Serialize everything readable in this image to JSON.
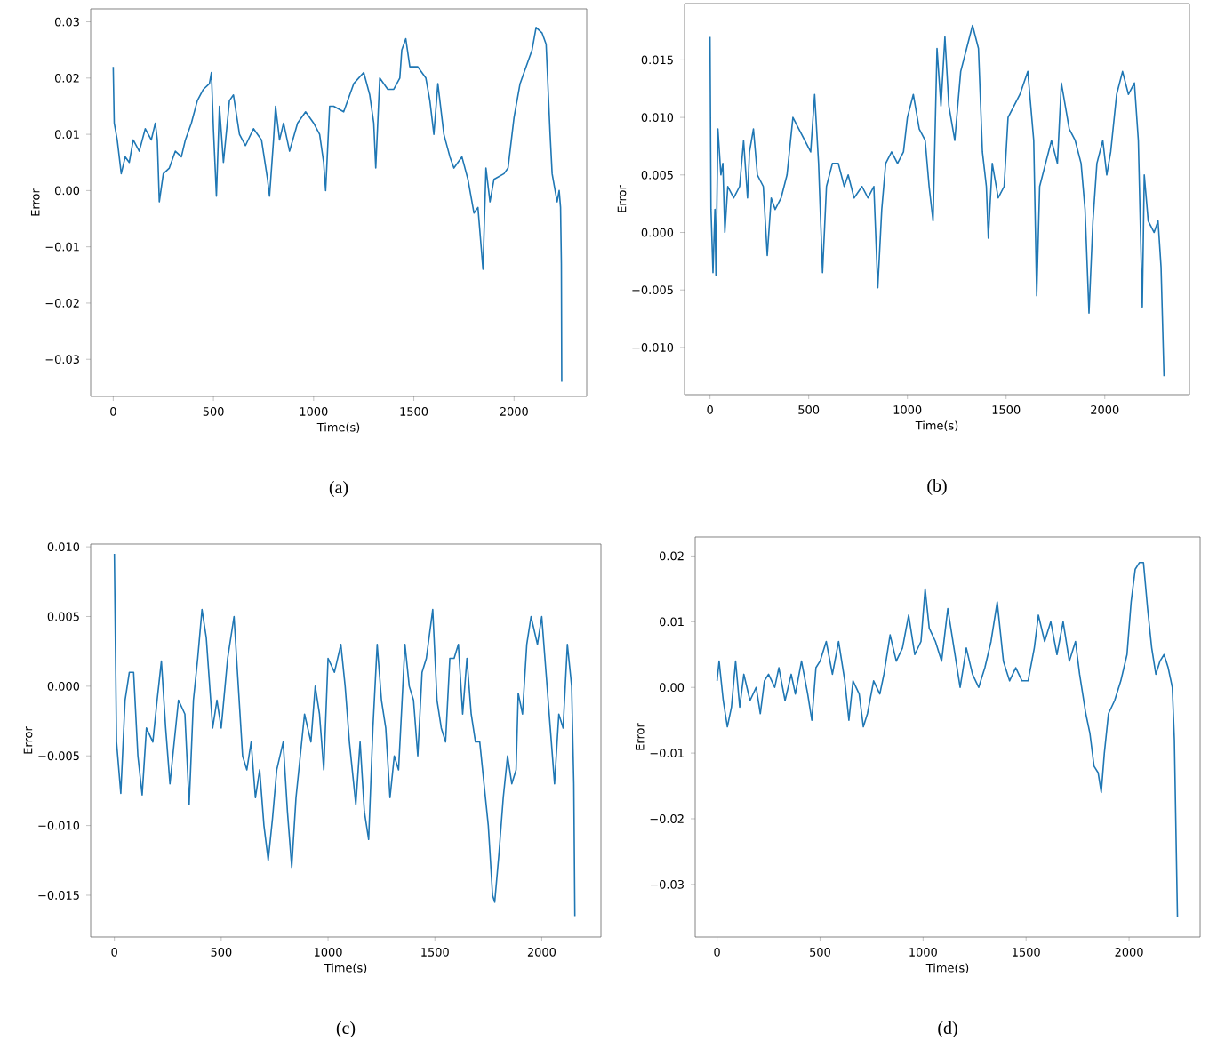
{
  "chart_data": [
    {
      "type": "line",
      "xlabel": "Time(s)",
      "ylabel": "Error",
      "annotations": [
        "(a)"
      ],
      "color": "#1f77b4",
      "grid": false,
      "marker": "none",
      "line_style": "solid",
      "xlim": [
        -112.5,
        2362.5
      ],
      "ylim": [
        -0.0366,
        0.0323
      ],
      "xticks": [
        0,
        500,
        1000,
        1500,
        2000
      ],
      "yticks": [
        {
          "value": -0.03,
          "label": "−0.03"
        },
        {
          "value": -0.02,
          "label": "−0.02"
        },
        {
          "value": -0.01,
          "label": "−0.01"
        },
        {
          "value": 0,
          "label": "0.00"
        },
        {
          "value": 0.01,
          "label": "0.01"
        },
        {
          "value": 0.02,
          "label": "0.02"
        },
        {
          "value": 0.03,
          "label": "0.03"
        }
      ],
      "x": [
        0,
        5,
        20,
        40,
        60,
        80,
        100,
        130,
        160,
        190,
        210,
        220,
        230,
        250,
        280,
        310,
        340,
        360,
        390,
        420,
        450,
        480,
        490,
        500,
        515,
        530,
        550,
        580,
        600,
        630,
        660,
        700,
        740,
        770,
        780,
        800,
        810,
        830,
        850,
        880,
        920,
        960,
        1000,
        1030,
        1050,
        1060,
        1080,
        1100,
        1150,
        1200,
        1250,
        1280,
        1300,
        1310,
        1330,
        1370,
        1400,
        1430,
        1440,
        1460,
        1480,
        1520,
        1560,
        1580,
        1600,
        1620,
        1650,
        1680,
        1700,
        1740,
        1770,
        1800,
        1820,
        1845,
        1860,
        1880,
        1900,
        1950,
        1970,
        2000,
        2030,
        2060,
        2090,
        2110,
        2140,
        2160,
        2180,
        2190,
        2200,
        2215,
        2225,
        2232,
        2236,
        2238
      ],
      "values": [
        0.022,
        0.012,
        0.009,
        0.003,
        0.006,
        0.005,
        0.009,
        0.007,
        0.011,
        0.009,
        0.012,
        0.009,
        -0.002,
        0.003,
        0.004,
        0.007,
        0.006,
        0.009,
        0.012,
        0.016,
        0.018,
        0.019,
        0.021,
        0.011,
        -0.001,
        0.015,
        0.005,
        0.016,
        0.017,
        0.01,
        0.008,
        0.011,
        0.009,
        0.002,
        -0.001,
        0.009,
        0.015,
        0.009,
        0.012,
        0.007,
        0.012,
        0.014,
        0.012,
        0.01,
        0.005,
        0.0,
        0.015,
        0.015,
        0.014,
        0.019,
        0.021,
        0.017,
        0.012,
        0.004,
        0.02,
        0.018,
        0.018,
        0.02,
        0.025,
        0.027,
        0.022,
        0.022,
        0.02,
        0.016,
        0.01,
        0.019,
        0.01,
        0.006,
        0.004,
        0.006,
        0.002,
        -0.004,
        -0.003,
        -0.014,
        0.004,
        -0.002,
        0.002,
        0.003,
        0.004,
        0.013,
        0.019,
        0.022,
        0.025,
        0.029,
        0.028,
        0.026,
        0.01,
        0.003,
        0.001,
        -0.002,
        0.0,
        -0.003,
        -0.013,
        -0.034
      ]
    },
    {
      "type": "line",
      "xlabel": "Time(s)",
      "ylabel": "Error",
      "annotations": [
        "(b)"
      ],
      "color": "#1f77b4",
      "grid": false,
      "marker": "none",
      "line_style": "solid",
      "xlim": [
        -129,
        2429
      ],
      "ylim": [
        -0.0141,
        0.0199
      ],
      "xticks": [
        0,
        500,
        1000,
        1500,
        2000
      ],
      "yticks": [
        {
          "value": -0.01,
          "label": "−0.010"
        },
        {
          "value": -0.005,
          "label": "−0.005"
        },
        {
          "value": 0,
          "label": "0.000"
        },
        {
          "value": 0.005,
          "label": "0.005"
        },
        {
          "value": 0.01,
          "label": "0.010"
        },
        {
          "value": 0.015,
          "label": "0.015"
        }
      ],
      "x": [
        0,
        5,
        15,
        25,
        30,
        40,
        55,
        65,
        75,
        90,
        120,
        150,
        170,
        190,
        200,
        220,
        240,
        270,
        290,
        310,
        330,
        360,
        390,
        420,
        450,
        480,
        510,
        530,
        550,
        570,
        590,
        620,
        650,
        680,
        700,
        730,
        770,
        800,
        830,
        850,
        870,
        890,
        920,
        950,
        980,
        1000,
        1030,
        1060,
        1090,
        1110,
        1130,
        1150,
        1170,
        1190,
        1210,
        1240,
        1270,
        1300,
        1330,
        1360,
        1380,
        1400,
        1410,
        1430,
        1460,
        1490,
        1510,
        1540,
        1570,
        1610,
        1640,
        1655,
        1670,
        1700,
        1730,
        1760,
        1780,
        1820,
        1850,
        1880,
        1900,
        1920,
        1940,
        1960,
        1990,
        2010,
        2030,
        2060,
        2090,
        2120,
        2150,
        2170,
        2190,
        2200,
        2220,
        2250,
        2270,
        2285,
        2300
      ],
      "values": [
        0.017,
        0.002,
        -0.0035,
        0.002,
        -0.0037,
        0.009,
        0.005,
        0.006,
        0.0,
        0.004,
        0.003,
        0.004,
        0.008,
        0.003,
        0.007,
        0.009,
        0.005,
        0.004,
        -0.002,
        0.003,
        0.002,
        0.003,
        0.005,
        0.01,
        0.009,
        0.008,
        0.007,
        0.012,
        0.006,
        -0.0035,
        0.004,
        0.006,
        0.006,
        0.004,
        0.005,
        0.003,
        0.004,
        0.003,
        0.004,
        -0.0048,
        0.002,
        0.006,
        0.007,
        0.006,
        0.007,
        0.01,
        0.012,
        0.009,
        0.008,
        0.004,
        0.001,
        0.016,
        0.011,
        0.017,
        0.011,
        0.008,
        0.014,
        0.016,
        0.018,
        0.016,
        0.007,
        0.004,
        -0.0005,
        0.006,
        0.003,
        0.004,
        0.01,
        0.011,
        0.012,
        0.014,
        0.008,
        -0.0055,
        0.004,
        0.006,
        0.008,
        0.006,
        0.013,
        0.009,
        0.008,
        0.006,
        0.002,
        -0.007,
        0.001,
        0.006,
        0.008,
        0.005,
        0.007,
        0.012,
        0.014,
        0.012,
        0.013,
        0.008,
        -0.0065,
        0.005,
        0.001,
        0.0,
        0.001,
        -0.003,
        -0.0125
      ]
    },
    {
      "type": "line",
      "xlabel": "Time(s)",
      "ylabel": "Error",
      "annotations": [
        "(c)"
      ],
      "color": "#1f77b4",
      "grid": false,
      "marker": "none",
      "line_style": "solid",
      "xlim": [
        -111,
        2277
      ],
      "ylim": [
        -0.018,
        0.0102
      ],
      "xticks": [
        0,
        500,
        1000,
        1500,
        2000
      ],
      "yticks": [
        {
          "value": -0.015,
          "label": "−0.015"
        },
        {
          "value": -0.01,
          "label": "−0.010"
        },
        {
          "value": -0.005,
          "label": "−0.005"
        },
        {
          "value": 0,
          "label": "0.000"
        },
        {
          "value": 0.005,
          "label": "0.005"
        },
        {
          "value": 0.01,
          "label": "0.010"
        }
      ],
      "x": [
        0,
        10,
        30,
        50,
        70,
        90,
        110,
        130,
        150,
        180,
        200,
        220,
        240,
        260,
        280,
        300,
        330,
        350,
        370,
        390,
        410,
        430,
        460,
        480,
        500,
        530,
        560,
        580,
        600,
        620,
        640,
        660,
        680,
        700,
        720,
        740,
        760,
        790,
        810,
        830,
        850,
        870,
        890,
        920,
        940,
        960,
        980,
        1000,
        1030,
        1060,
        1080,
        1100,
        1130,
        1150,
        1170,
        1190,
        1210,
        1230,
        1250,
        1270,
        1290,
        1310,
        1330,
        1360,
        1380,
        1400,
        1420,
        1440,
        1460,
        1490,
        1510,
        1530,
        1550,
        1570,
        1590,
        1610,
        1630,
        1650,
        1670,
        1690,
        1710,
        1730,
        1750,
        1770,
        1780,
        1800,
        1820,
        1840,
        1860,
        1880,
        1890,
        1910,
        1930,
        1950,
        1980,
        2000,
        2020,
        2040,
        2060,
        2080,
        2100,
        2120,
        2140,
        2150,
        2155
      ],
      "values": [
        0.0095,
        -0.004,
        -0.0077,
        -0.001,
        0.001,
        0.001,
        -0.005,
        -0.0078,
        -0.003,
        -0.004,
        -0.001,
        0.0018,
        -0.003,
        -0.007,
        -0.004,
        -0.001,
        -0.002,
        -0.0085,
        -0.001,
        0.002,
        0.0055,
        0.0035,
        -0.003,
        -0.001,
        -0.003,
        0.002,
        0.005,
        0.0,
        -0.005,
        -0.006,
        -0.004,
        -0.008,
        -0.006,
        -0.01,
        -0.0125,
        -0.0095,
        -0.006,
        -0.004,
        -0.009,
        -0.013,
        -0.008,
        -0.005,
        -0.002,
        -0.004,
        0.0,
        -0.002,
        -0.006,
        0.002,
        0.001,
        0.003,
        0.0,
        -0.004,
        -0.0085,
        -0.004,
        -0.009,
        -0.011,
        -0.003,
        0.003,
        -0.001,
        -0.003,
        -0.008,
        -0.005,
        -0.006,
        0.003,
        0.0,
        -0.001,
        -0.005,
        0.001,
        0.002,
        0.0055,
        -0.001,
        -0.003,
        -0.004,
        0.002,
        0.002,
        0.003,
        -0.002,
        0.002,
        -0.002,
        -0.004,
        -0.004,
        -0.007,
        -0.01,
        -0.015,
        -0.0155,
        -0.012,
        -0.008,
        -0.005,
        -0.007,
        -0.006,
        -0.0005,
        -0.002,
        0.003,
        0.005,
        0.003,
        0.005,
        0.001,
        -0.003,
        -0.007,
        -0.002,
        -0.003,
        0.003,
        0.0,
        -0.007,
        -0.0165
      ]
    },
    {
      "type": "line",
      "xlabel": "Time(s)",
      "ylabel": "Error",
      "annotations": [
        "(d)"
      ],
      "color": "#1f77b4",
      "grid": false,
      "marker": "none",
      "line_style": "solid",
      "xlim": [
        -106,
        2345
      ],
      "ylim": [
        -0.038,
        0.0229
      ],
      "xticks": [
        0,
        500,
        1000,
        1500,
        2000
      ],
      "yticks": [
        {
          "value": -0.03,
          "label": "−0.03"
        },
        {
          "value": -0.02,
          "label": "−0.02"
        },
        {
          "value": -0.01,
          "label": "−0.01"
        },
        {
          "value": 0,
          "label": "0.00"
        },
        {
          "value": 0.01,
          "label": "0.01"
        },
        {
          "value": 0.02,
          "label": "0.02"
        }
      ],
      "x": [
        0,
        10,
        30,
        50,
        70,
        90,
        110,
        130,
        160,
        190,
        210,
        230,
        250,
        280,
        300,
        330,
        360,
        380,
        410,
        440,
        460,
        480,
        500,
        530,
        560,
        590,
        620,
        640,
        660,
        690,
        710,
        730,
        760,
        790,
        810,
        840,
        870,
        900,
        930,
        960,
        990,
        1010,
        1030,
        1060,
        1090,
        1120,
        1150,
        1180,
        1210,
        1240,
        1270,
        1300,
        1330,
        1360,
        1390,
        1420,
        1450,
        1480,
        1510,
        1540,
        1560,
        1590,
        1620,
        1650,
        1680,
        1710,
        1740,
        1760,
        1790,
        1810,
        1830,
        1850,
        1865,
        1880,
        1900,
        1930,
        1960,
        1990,
        2010,
        2030,
        2050,
        2070,
        2090,
        2110,
        2130,
        2150,
        2170,
        2190,
        2210,
        2220,
        2235
      ],
      "values": [
        0.001,
        0.004,
        -0.002,
        -0.006,
        -0.003,
        0.004,
        -0.003,
        0.002,
        -0.002,
        0.0,
        -0.004,
        0.001,
        0.002,
        0.0,
        0.003,
        -0.002,
        0.002,
        -0.001,
        0.004,
        -0.001,
        -0.005,
        0.003,
        0.004,
        0.007,
        0.002,
        0.007,
        0.001,
        -0.005,
        0.001,
        -0.001,
        -0.006,
        -0.004,
        0.001,
        -0.001,
        0.002,
        0.008,
        0.004,
        0.006,
        0.011,
        0.005,
        0.007,
        0.015,
        0.009,
        0.007,
        0.004,
        0.012,
        0.006,
        0.0,
        0.006,
        0.002,
        0.0,
        0.003,
        0.007,
        0.013,
        0.004,
        0.001,
        0.003,
        0.001,
        0.001,
        0.006,
        0.011,
        0.007,
        0.01,
        0.005,
        0.01,
        0.004,
        0.007,
        0.002,
        -0.004,
        -0.007,
        -0.012,
        -0.013,
        -0.016,
        -0.01,
        -0.004,
        -0.002,
        0.001,
        0.005,
        0.013,
        0.018,
        0.019,
        0.019,
        0.012,
        0.006,
        0.002,
        0.004,
        0.005,
        0.003,
        0.0,
        -0.008,
        -0.035
      ]
    }
  ]
}
